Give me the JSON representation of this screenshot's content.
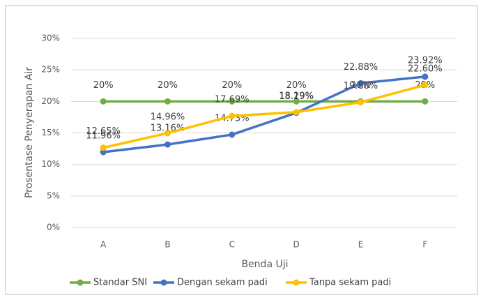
{
  "chart_data": {
    "type": "line",
    "xlabel": "Benda Uji",
    "ylabel": "Prosentase Penyerapan Air",
    "categories": [
      "A",
      "B",
      "C",
      "D",
      "E",
      "F"
    ],
    "series": [
      {
        "name": "Standar SNI",
        "color": "#70ad47",
        "values": [
          20,
          20,
          20,
          20,
          20,
          20
        ],
        "value_labels": [
          "20%",
          "20%",
          "20%",
          "20%",
          "20%",
          "20%"
        ]
      },
      {
        "name": "Dengan sekam padi",
        "color": "#4472c4",
        "values": [
          11.96,
          13.16,
          14.73,
          18.19,
          22.88,
          23.92
        ],
        "value_labels": [
          "11.96%",
          "13.16%",
          "14.73%",
          "18.19%",
          "22.88%",
          "23.92%"
        ]
      },
      {
        "name": "Tanpa sekam padi",
        "color": "#ffc000",
        "values": [
          12.65,
          14.96,
          17.69,
          18.29,
          19.86,
          22.6
        ],
        "value_labels": [
          "12.65%",
          "14.96%",
          "17.69%",
          "18.29%",
          "19.86%",
          "22.60%"
        ]
      }
    ],
    "ylim": [
      0,
      30
    ],
    "yticks": [
      {
        "value": 0,
        "label": "0%"
      },
      {
        "value": 5,
        "label": "5%"
      },
      {
        "value": 10,
        "label": "10%"
      },
      {
        "value": 15,
        "label": "15%"
      },
      {
        "value": 20,
        "label": "20%"
      },
      {
        "value": 25,
        "label": "25%"
      },
      {
        "value": 30,
        "label": "30%"
      }
    ],
    "grid": true,
    "legend": "bottom"
  }
}
